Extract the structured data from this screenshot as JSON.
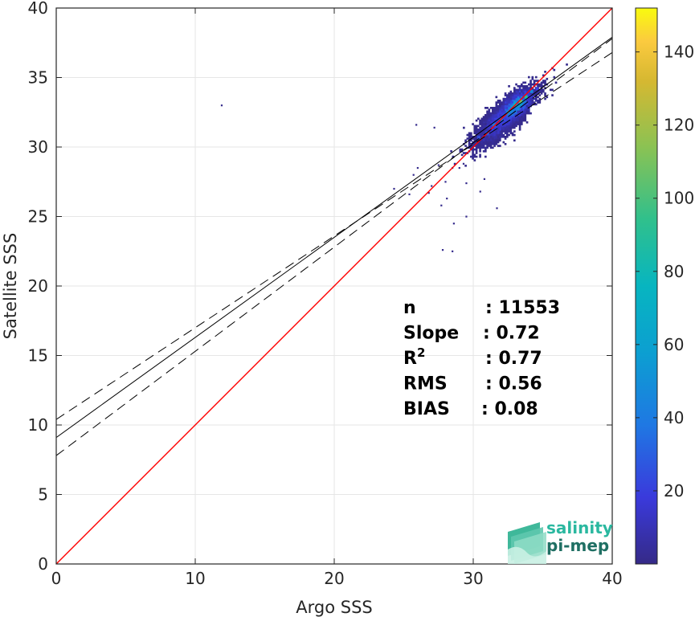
{
  "chart_data": {
    "type": "heatmap",
    "title": "",
    "xlabel": "Argo SSS",
    "ylabel": "Satellite SSS",
    "xlim": [
      0,
      40
    ],
    "ylim": [
      0,
      40
    ],
    "xticks": [
      "0",
      "10",
      "20",
      "30",
      "40"
    ],
    "yticks": [
      "0",
      "5",
      "10",
      "15",
      "20",
      "25",
      "30",
      "35",
      "40"
    ],
    "grid": true,
    "colormap": "parula",
    "colorbar": {
      "min": 0,
      "max": 152,
      "ticks": [
        "20",
        "40",
        "60",
        "80",
        "100",
        "120",
        "140"
      ]
    },
    "identity_line": {
      "color": "#ff0000",
      "points": [
        [
          0,
          0
        ],
        [
          40,
          40
        ]
      ]
    },
    "regression_line": {
      "intercept": 9.1,
      "slope": 0.72,
      "color": "#000000"
    },
    "confidence_lines": [
      {
        "intercept": 10.4,
        "slope": 0.66,
        "style": "dashed"
      },
      {
        "intercept": 7.8,
        "slope": 0.75,
        "style": "dashed"
      }
    ],
    "density_clusters": [
      {
        "x": 30.4,
        "y": 30.7,
        "count": 25
      },
      {
        "x": 31.0,
        "y": 31.0,
        "count": 35
      },
      {
        "x": 31.5,
        "y": 31.6,
        "count": 40
      },
      {
        "x": 32.0,
        "y": 32.0,
        "count": 45
      },
      {
        "x": 32.5,
        "y": 32.5,
        "count": 60
      },
      {
        "x": 33.0,
        "y": 33.0,
        "count": 80
      },
      {
        "x": 33.4,
        "y": 33.3,
        "count": 110
      },
      {
        "x": 33.8,
        "y": 33.6,
        "count": 90
      },
      {
        "x": 34.2,
        "y": 34.0,
        "count": 45
      },
      {
        "x": 34.6,
        "y": 34.2,
        "count": 20
      }
    ],
    "outliers": [
      [
        11.9,
        33.0
      ],
      [
        25.9,
        31.6
      ],
      [
        27.2,
        31.4
      ],
      [
        26.0,
        28.5
      ],
      [
        25.7,
        28.0
      ],
      [
        24.3,
        27.0
      ],
      [
        25.4,
        26.6
      ],
      [
        27.0,
        27.2
      ],
      [
        28.5,
        28.5
      ],
      [
        28.0,
        27.5
      ],
      [
        29.0,
        28.5
      ],
      [
        27.7,
        25.8
      ],
      [
        28.1,
        26.3
      ],
      [
        28.6,
        24.5
      ],
      [
        27.8,
        22.6
      ],
      [
        28.5,
        22.5
      ],
      [
        29.5,
        25.0
      ],
      [
        30.5,
        26.8
      ],
      [
        31.7,
        25.6
      ],
      [
        30.8,
        27.7
      ],
      [
        26.8,
        26.7
      ],
      [
        29.3,
        28.8
      ],
      [
        27.5,
        28.7
      ],
      [
        29.5,
        27.4
      ]
    ],
    "stats": [
      {
        "label": "n",
        "value": ": 11553"
      },
      {
        "label": "Slope",
        "value": ": 0.72"
      },
      {
        "label": "R",
        "sup": "2",
        "value": ": 0.77"
      },
      {
        "label": "RMS",
        "value": ": 0.56"
      },
      {
        "label": "BIAS",
        "value": ": 0.08"
      }
    ]
  },
  "logo": {
    "line1": "salinity",
    "line2": "pi-mep",
    "color_top": "#2bb8a0",
    "color_bottom": "#1f6f63"
  }
}
